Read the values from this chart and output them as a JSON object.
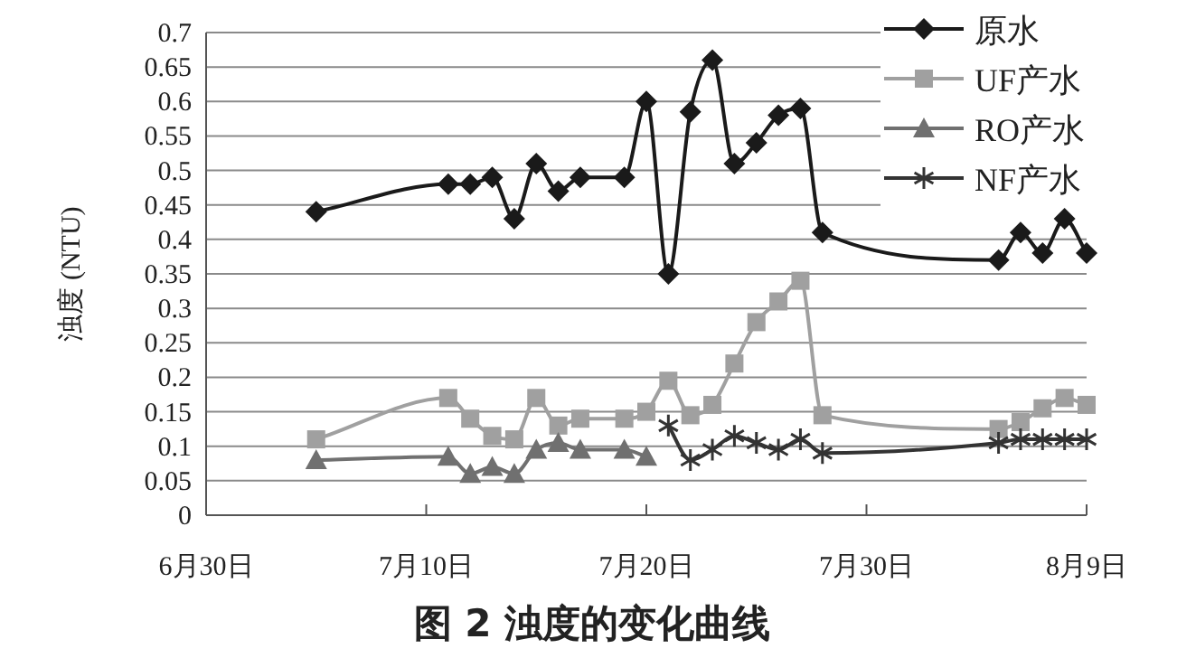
{
  "chart_data": {
    "type": "line",
    "title": "图 2 浊度的变化曲线",
    "ylabel": "浊度 (NTU)",
    "xlim": [
      "--06-30",
      "--08-09"
    ],
    "xticks": [
      {
        "value": "--06-30",
        "label": "6月30日"
      },
      {
        "value": "--07-10",
        "label": "7月10日"
      },
      {
        "value": "--07-20",
        "label": "7月20日"
      },
      {
        "value": "--07-30",
        "label": "7月30日"
      },
      {
        "value": "--08-09",
        "label": "8月9日"
      }
    ],
    "ylim": [
      0,
      0.7
    ],
    "yticks": [
      0,
      0.05,
      0.1,
      0.15,
      0.2,
      0.25,
      0.3,
      0.35,
      0.4,
      0.45,
      0.5,
      0.55,
      0.6,
      0.65,
      0.7
    ],
    "grid": "y",
    "legend": "top right",
    "series": [
      {
        "name": "原水",
        "color": "#1a1a1a",
        "marker": "diamond",
        "x": [
          "--07-05",
          "--07-11",
          "--07-12",
          "--07-13",
          "--07-14",
          "--07-15",
          "--07-16",
          "--07-17",
          "--07-19",
          "--07-20",
          "--07-21",
          "--07-22",
          "--07-23",
          "--07-24",
          "--07-25",
          "--07-26",
          "--07-27",
          "--07-28",
          "--08-05",
          "--08-06",
          "--08-07",
          "--08-08",
          "--08-09"
        ],
        "values": [
          0.44,
          0.48,
          0.48,
          0.49,
          0.43,
          0.51,
          0.47,
          0.49,
          0.49,
          0.6,
          0.35,
          0.585,
          0.66,
          0.51,
          0.54,
          0.58,
          0.59,
          0.41,
          0.37,
          0.41,
          0.38,
          0.43,
          0.38
        ]
      },
      {
        "name": "UF产水",
        "color": "#a0a0a0",
        "marker": "square",
        "x": [
          "--07-05",
          "--07-11",
          "--07-12",
          "--07-13",
          "--07-14",
          "--07-15",
          "--07-16",
          "--07-17",
          "--07-19",
          "--07-20",
          "--07-21",
          "--07-22",
          "--07-23",
          "--07-24",
          "--07-25",
          "--07-26",
          "--07-27",
          "--07-28",
          "--08-05",
          "--08-06",
          "--08-07",
          "--08-08",
          "--08-09"
        ],
        "values": [
          0.11,
          0.17,
          0.14,
          0.115,
          0.11,
          0.17,
          0.13,
          0.14,
          0.14,
          0.15,
          0.195,
          0.145,
          0.16,
          0.22,
          0.28,
          0.31,
          0.34,
          0.145,
          0.125,
          0.135,
          0.155,
          0.17,
          0.16
        ]
      },
      {
        "name": "RO产水",
        "color": "#707070",
        "marker": "triangle",
        "x": [
          "--07-05",
          "--07-11",
          "--07-12",
          "--07-13",
          "--07-14",
          "--07-15",
          "--07-16",
          "--07-17",
          "--07-19",
          "--07-20"
        ],
        "values": [
          0.08,
          0.085,
          0.06,
          0.07,
          0.06,
          0.095,
          0.105,
          0.095,
          0.095,
          0.085
        ]
      },
      {
        "name": "NF产水",
        "color": "#333333",
        "marker": "cross",
        "x": [
          "--07-21",
          "--07-22",
          "--07-23",
          "--07-24",
          "--07-25",
          "--07-26",
          "--07-27",
          "--07-28",
          "--08-05",
          "--08-06",
          "--08-07",
          "--08-08",
          "--08-09"
        ],
        "values": [
          0.13,
          0.08,
          0.095,
          0.115,
          0.105,
          0.095,
          0.11,
          0.09,
          0.105,
          0.11,
          0.11,
          0.11,
          0.11
        ]
      }
    ]
  }
}
